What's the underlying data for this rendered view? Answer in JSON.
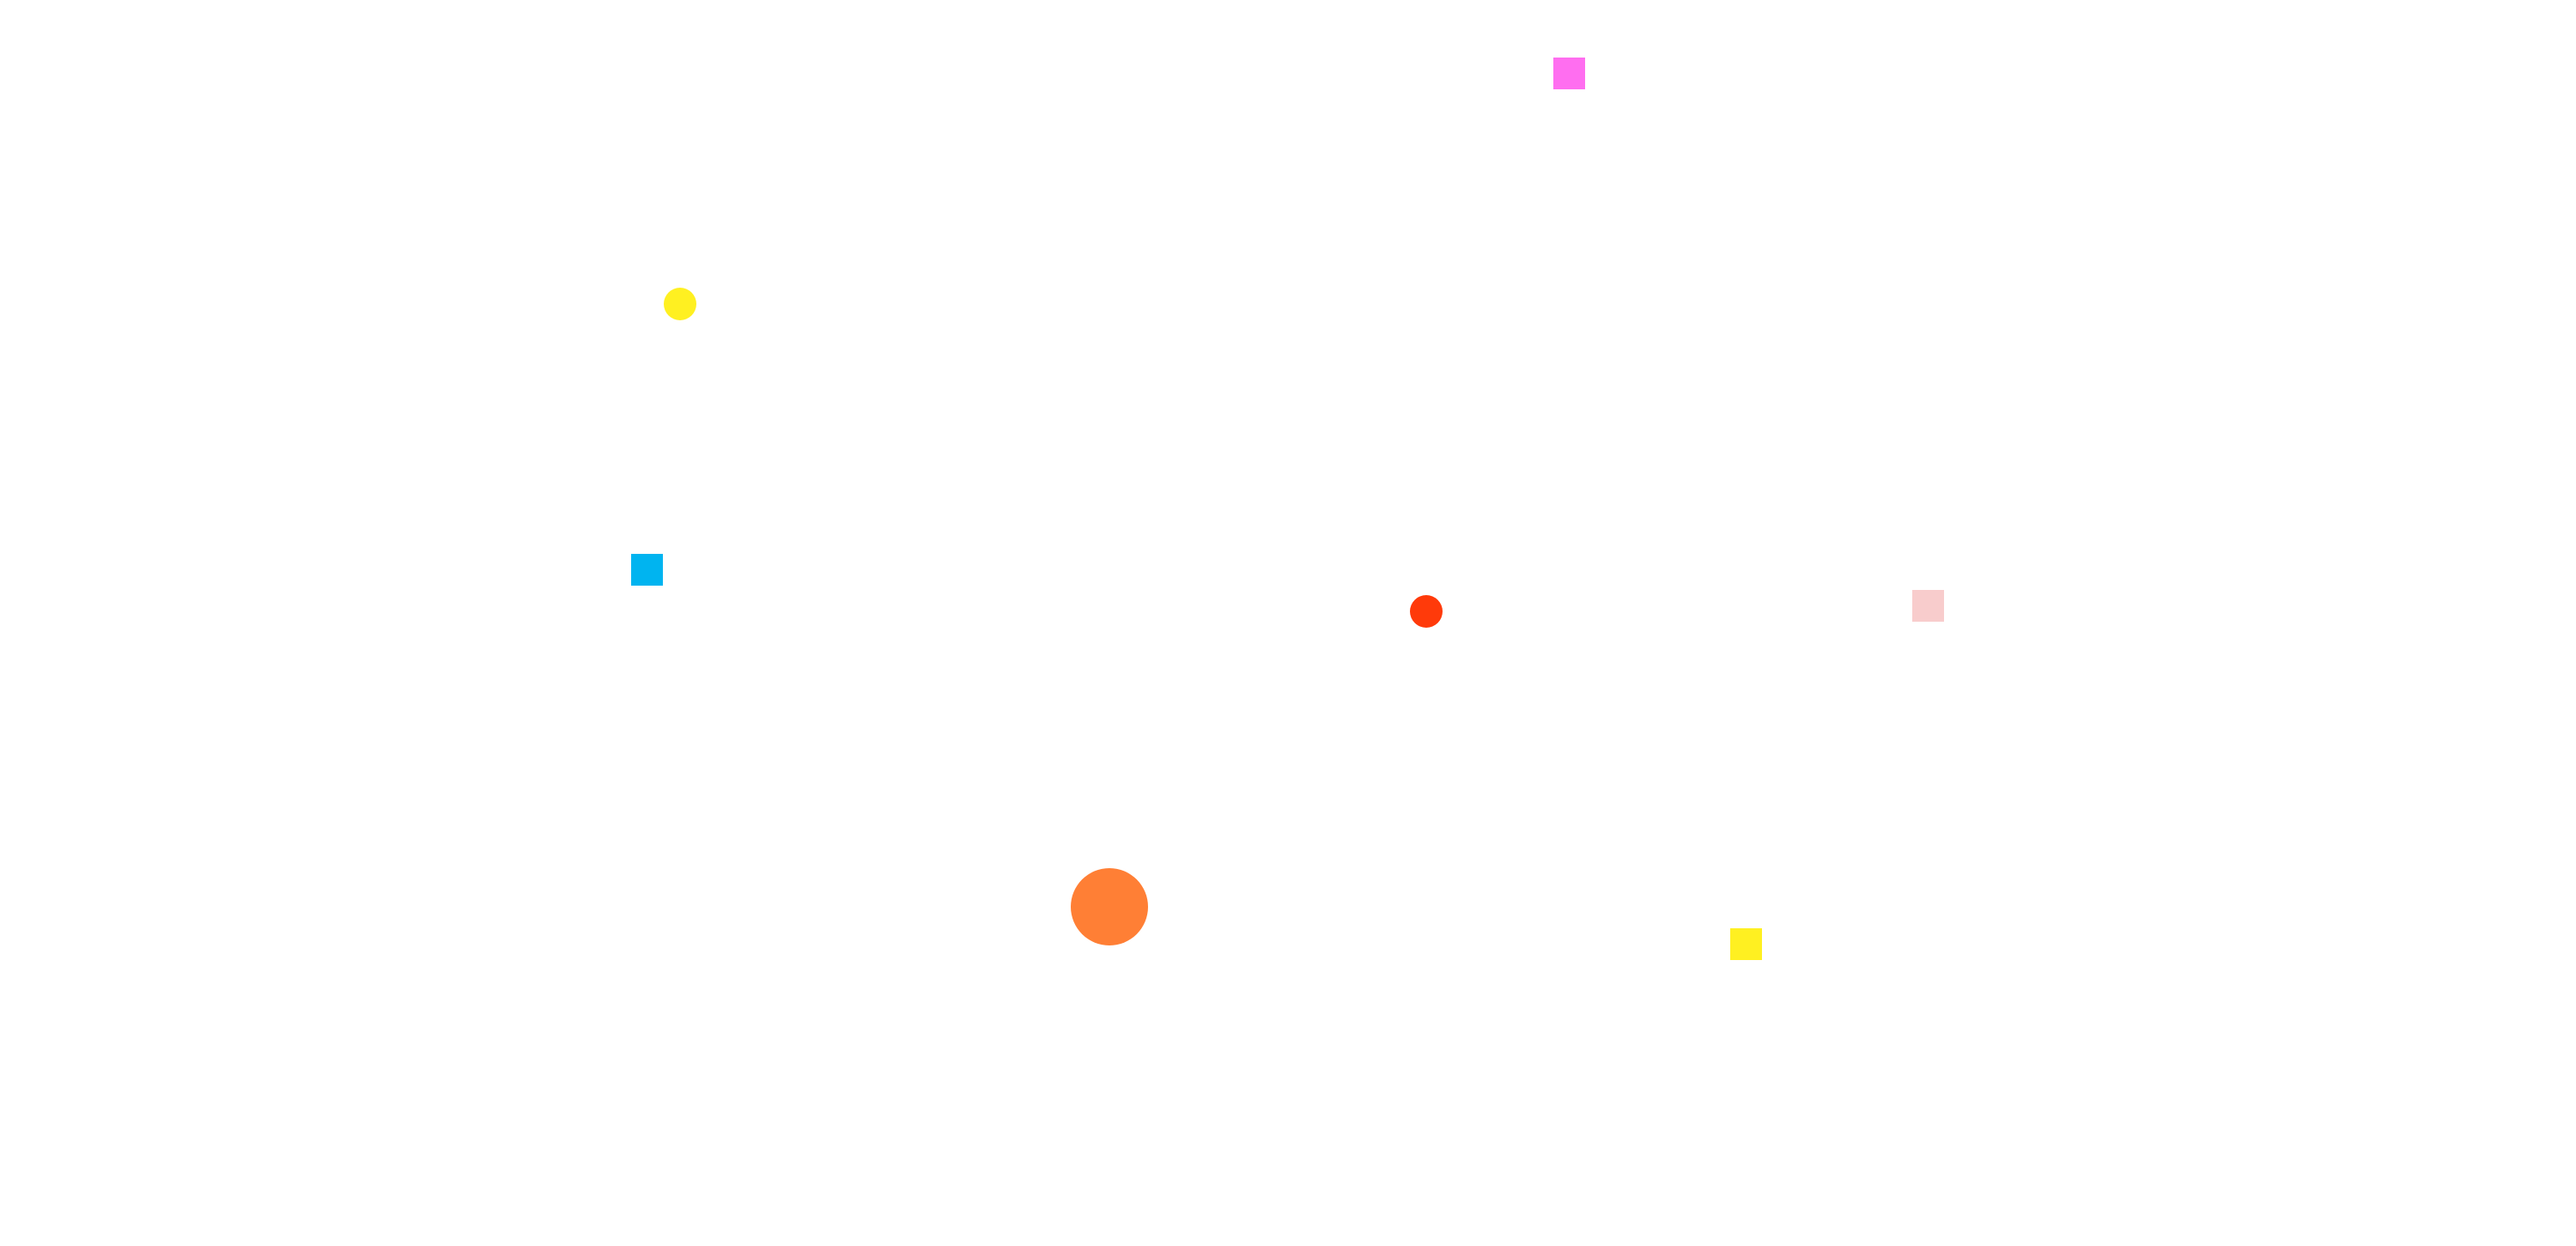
{
  "background": "#ffffff",
  "shapes": [
    {
      "kind": "square",
      "color": "#ff6ef0"
    },
    {
      "kind": "circle",
      "color": "#fff021"
    },
    {
      "kind": "square",
      "color": "#00b4f0"
    },
    {
      "kind": "circle",
      "color": "#ff3a0a"
    },
    {
      "kind": "square",
      "color": "#f8cccc"
    },
    {
      "kind": "circle",
      "color": "#ff7f35"
    },
    {
      "kind": "square",
      "color": "#fff021"
    }
  ]
}
